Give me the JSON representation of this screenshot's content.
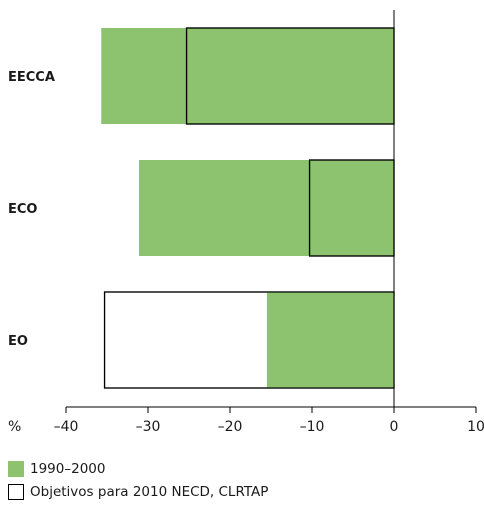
{
  "chart_data": {
    "type": "bar",
    "orientation": "horizontal",
    "categories": [
      "EECCA",
      "ECO",
      "EO"
    ],
    "series": [
      {
        "name": "1990–2000",
        "values": [
          -35.7,
          -31.1,
          -15.5
        ],
        "color": "#8dc26f"
      },
      {
        "name": "Objetivos para 2010 NECD, CLRTAP",
        "values": [
          -25.3,
          -10.3,
          -35.3
        ],
        "color": "#ffffff"
      }
    ],
    "x_unit_label": "%",
    "xlim": [
      -40,
      10
    ],
    "xticks": [
      -40,
      -30,
      -20,
      -10,
      0,
      10
    ],
    "xtick_labels": [
      "–40",
      "–30",
      "–20",
      "–10",
      "0",
      "10"
    ],
    "legend_position": "bottom-left",
    "grid": false
  }
}
